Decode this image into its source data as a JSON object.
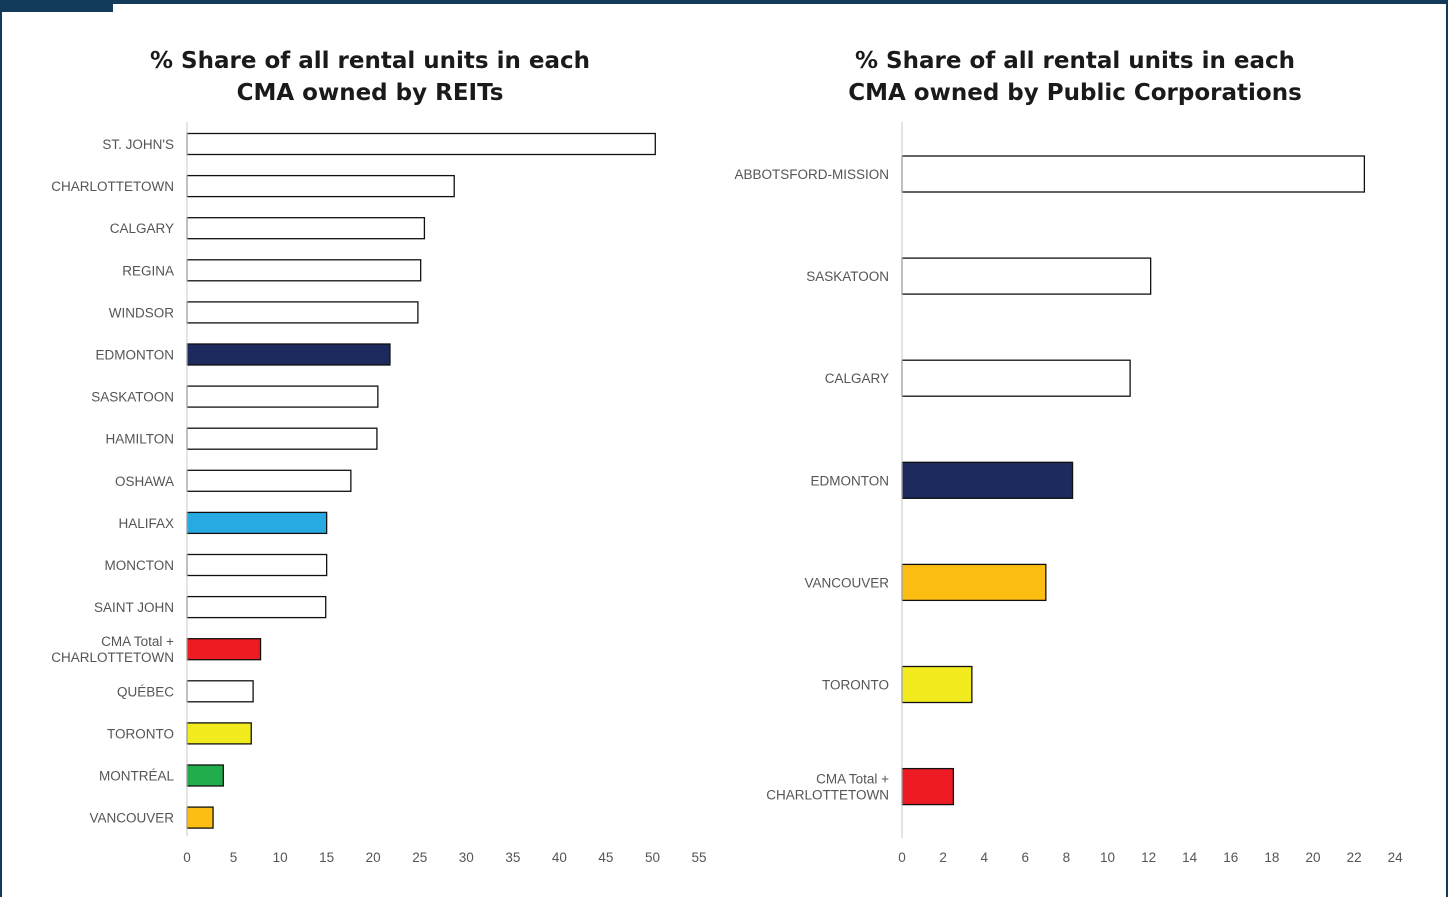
{
  "chart_data": [
    {
      "type": "bar",
      "orientation": "horizontal",
      "title": "% Share of all rental units in each CMA owned by REITs",
      "title_lines": [
        "% Share of all rental units in each",
        "CMA owned by REITs"
      ],
      "xlabel": "",
      "ylabel": "",
      "xlim": [
        0,
        55
      ],
      "xticks": [
        0,
        5,
        10,
        15,
        20,
        25,
        30,
        35,
        40,
        45,
        50,
        55
      ],
      "grid": false,
      "categories": [
        "ST. JOHN'S",
        "CHARLOTTETOWN",
        "CALGARY",
        "REGINA",
        "WINDSOR",
        "EDMONTON",
        "SASKATOON",
        "HAMILTON",
        "OSHAWA",
        "HALIFAX",
        "MONCTON",
        "SAINT JOHN",
        "CMA Total +\nCHARLOTTETOWN",
        "QUÉBEC",
        "TORONTO",
        "MONTRÉAL",
        "VANCOUVER"
      ],
      "values": [
        50.3,
        28.7,
        25.5,
        25.1,
        24.8,
        21.8,
        20.5,
        20.4,
        17.6,
        15.0,
        15.0,
        14.9,
        7.9,
        7.1,
        6.9,
        3.9,
        2.8
      ],
      "colors": [
        "#ffffff",
        "#ffffff",
        "#ffffff",
        "#ffffff",
        "#ffffff",
        "#1c2a5e",
        "#ffffff",
        "#ffffff",
        "#ffffff",
        "#27aae1",
        "#ffffff",
        "#ffffff",
        "#ed1c24",
        "#ffffff",
        "#ffffff",
        "#ffffff",
        "#ffffff"
      ]
    },
    {
      "type": "bar",
      "orientation": "horizontal",
      "title": "% Share of all rental units in each CMA owned by Public Corporations",
      "title_lines": [
        "% Share of all rental units in each",
        "CMA owned by Public Corporations"
      ],
      "xlabel": "",
      "ylabel": "",
      "xlim": [
        0,
        24
      ],
      "xticks": [
        0,
        2,
        4,
        6,
        8,
        10,
        12,
        14,
        16,
        18,
        20,
        22,
        24
      ],
      "grid": false,
      "categories": [
        "ABBOTSFORD-MISSION",
        "SASKATOON",
        "CALGARY",
        "EDMONTON",
        "VANCOUVER",
        "TORONTO",
        "CMA Total +\nCHARLOTTETOWN"
      ],
      "values": [
        22.5,
        12.1,
        11.1,
        8.3,
        7.0,
        3.4,
        2.5
      ],
      "colors": [
        "#ffffff",
        "#ffffff",
        "#ffffff",
        "#1c2a5e",
        "#fdbe13",
        "#f2eb1d",
        "#ed1c24"
      ]
    }
  ],
  "bar_colors_note_ref": {
    "montreal": "#21ad4b",
    "toronto": "#f2eb1d",
    "vancouver": "#fdbe13"
  }
}
